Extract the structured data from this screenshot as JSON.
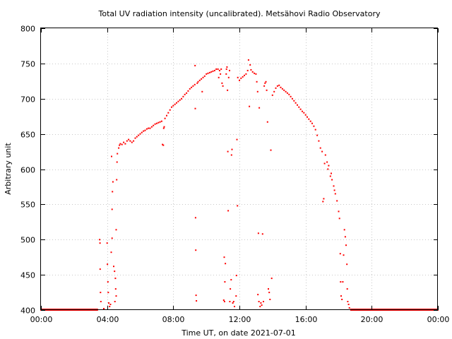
{
  "chart_data": {
    "type": "scatter",
    "title": "Total UV radiation intensity (uncalibrated). Metsähovi Radio Observatory",
    "xlabel": "Time UT, on date 2021-07-01",
    "ylabel": "Arbitrary unit",
    "x_unit": "hours UT",
    "xlim": [
      0,
      24
    ],
    "ylim": [
      400,
      800
    ],
    "x_ticks": [
      {
        "value": 0,
        "label": "00:00"
      },
      {
        "value": 4,
        "label": "04:00"
      },
      {
        "value": 8,
        "label": "08:00"
      },
      {
        "value": 12,
        "label": "12:00"
      },
      {
        "value": 16,
        "label": "16:00"
      },
      {
        "value": 20,
        "label": "20:00"
      },
      {
        "value": 24,
        "label": "00:00"
      }
    ],
    "y_ticks": [
      400,
      450,
      500,
      550,
      600,
      650,
      700,
      750,
      800
    ],
    "grid": true,
    "marker_color": "#ff0000",
    "series": [
      {
        "points": [
          [
            0.0,
            400
          ],
          [
            0.5,
            400
          ],
          [
            1.0,
            400
          ],
          [
            1.5,
            400
          ],
          [
            2.0,
            400
          ],
          [
            2.5,
            400
          ],
          [
            3.0,
            400
          ],
          [
            3.4,
            400
          ],
          [
            3.55,
            500
          ],
          [
            3.57,
            495
          ],
          [
            3.58,
            458
          ],
          [
            3.6,
            425
          ],
          [
            3.62,
            412
          ],
          [
            3.8,
            402
          ],
          [
            4.0,
            495
          ],
          [
            4.02,
            465
          ],
          [
            4.05,
            440
          ],
          [
            4.07,
            425
          ],
          [
            4.1,
            410
          ],
          [
            4.15,
            405
          ],
          [
            4.2,
            408
          ],
          [
            4.25,
            482
          ],
          [
            4.3,
            502
          ],
          [
            4.3,
            543
          ],
          [
            4.32,
            568
          ],
          [
            4.35,
            582
          ],
          [
            4.27,
            618
          ],
          [
            4.4,
            462
          ],
          [
            4.45,
            455
          ],
          [
            4.5,
            445
          ],
          [
            4.52,
            430
          ],
          [
            4.55,
            420
          ],
          [
            4.47,
            412
          ],
          [
            4.55,
            514
          ],
          [
            4.58,
            585
          ],
          [
            4.6,
            610
          ],
          [
            4.62,
            622
          ],
          [
            4.7,
            630
          ],
          [
            4.75,
            634
          ],
          [
            4.8,
            636
          ],
          [
            4.9,
            635
          ],
          [
            5.0,
            638
          ],
          [
            5.1,
            636
          ],
          [
            5.2,
            640
          ],
          [
            5.3,
            642
          ],
          [
            5.4,
            640
          ],
          [
            5.5,
            638
          ],
          [
            5.6,
            640
          ],
          [
            5.7,
            644
          ],
          [
            5.8,
            646
          ],
          [
            5.9,
            648
          ],
          [
            6.0,
            650
          ],
          [
            6.1,
            652
          ],
          [
            6.2,
            654
          ],
          [
            6.3,
            655
          ],
          [
            6.4,
            657
          ],
          [
            6.5,
            658
          ],
          [
            6.6,
            658
          ],
          [
            6.7,
            660
          ],
          [
            6.8,
            662
          ],
          [
            6.9,
            664
          ],
          [
            7.0,
            665
          ],
          [
            7.1,
            666
          ],
          [
            7.2,
            667
          ],
          [
            7.3,
            668
          ],
          [
            7.35,
            635
          ],
          [
            7.4,
            634
          ],
          [
            7.42,
            658
          ],
          [
            7.45,
            660
          ],
          [
            7.5,
            672
          ],
          [
            7.6,
            676
          ],
          [
            7.7,
            680
          ],
          [
            7.8,
            684
          ],
          [
            7.9,
            688
          ],
          [
            8.0,
            690
          ],
          [
            8.1,
            692
          ],
          [
            8.2,
            694
          ],
          [
            8.3,
            696
          ],
          [
            8.4,
            698
          ],
          [
            8.5,
            700
          ],
          [
            8.6,
            703
          ],
          [
            8.7,
            706
          ],
          [
            8.8,
            708
          ],
          [
            8.9,
            711
          ],
          [
            9.0,
            714
          ],
          [
            9.1,
            716
          ],
          [
            9.2,
            718
          ],
          [
            9.3,
            720
          ],
          [
            9.32,
            747
          ],
          [
            9.33,
            686
          ],
          [
            9.35,
            531
          ],
          [
            9.36,
            485
          ],
          [
            9.38,
            421
          ],
          [
            9.4,
            413
          ],
          [
            9.45,
            722
          ],
          [
            9.5,
            724
          ],
          [
            9.6,
            726
          ],
          [
            9.7,
            728
          ],
          [
            9.75,
            710
          ],
          [
            9.8,
            730
          ],
          [
            9.9,
            732
          ],
          [
            10.0,
            735
          ],
          [
            10.1,
            736
          ],
          [
            10.2,
            737
          ],
          [
            10.3,
            738
          ],
          [
            10.4,
            739
          ],
          [
            10.5,
            740
          ],
          [
            10.6,
            742
          ],
          [
            10.7,
            742
          ],
          [
            10.75,
            730
          ],
          [
            10.8,
            740
          ],
          [
            10.85,
            735
          ],
          [
            10.9,
            742
          ],
          [
            10.95,
            722
          ],
          [
            11.0,
            718
          ],
          [
            11.05,
            414
          ],
          [
            11.08,
            475
          ],
          [
            11.1,
            412
          ],
          [
            11.12,
            440
          ],
          [
            11.15,
            466
          ],
          [
            11.2,
            735
          ],
          [
            11.22,
            742
          ],
          [
            11.25,
            745
          ],
          [
            11.28,
            712
          ],
          [
            11.3,
            625
          ],
          [
            11.32,
            541
          ],
          [
            11.35,
            730
          ],
          [
            11.4,
            740
          ],
          [
            11.42,
            412
          ],
          [
            11.45,
            430
          ],
          [
            11.5,
            443
          ],
          [
            11.52,
            620
          ],
          [
            11.55,
            628
          ],
          [
            11.6,
            410
          ],
          [
            11.65,
            412
          ],
          [
            11.7,
            405
          ],
          [
            11.8,
            420
          ],
          [
            11.82,
            449
          ],
          [
            11.85,
            642
          ],
          [
            11.88,
            548
          ],
          [
            11.9,
            730
          ],
          [
            12.0,
            726
          ],
          [
            12.1,
            729
          ],
          [
            12.2,
            731
          ],
          [
            12.3,
            733
          ],
          [
            12.4,
            735
          ],
          [
            12.5,
            740
          ],
          [
            12.55,
            755
          ],
          [
            12.6,
            689
          ],
          [
            12.65,
            748
          ],
          [
            12.7,
            741
          ],
          [
            12.8,
            738
          ],
          [
            12.9,
            736
          ],
          [
            13.0,
            735
          ],
          [
            13.05,
            724
          ],
          [
            13.1,
            710
          ],
          [
            13.12,
            422
          ],
          [
            13.15,
            509
          ],
          [
            13.18,
            412
          ],
          [
            13.2,
            687
          ],
          [
            13.25,
            405
          ],
          [
            13.3,
            410
          ],
          [
            13.35,
            407
          ],
          [
            13.4,
            508
          ],
          [
            13.45,
            412
          ],
          [
            13.5,
            718
          ],
          [
            13.55,
            722
          ],
          [
            13.6,
            724
          ],
          [
            13.65,
            712
          ],
          [
            13.7,
            667
          ],
          [
            13.75,
            430
          ],
          [
            13.8,
            425
          ],
          [
            13.85,
            415
          ],
          [
            13.9,
            627
          ],
          [
            13.95,
            445
          ],
          [
            14.0,
            705
          ],
          [
            14.1,
            710
          ],
          [
            14.2,
            715
          ],
          [
            14.3,
            718
          ],
          [
            14.4,
            719
          ],
          [
            14.5,
            716
          ],
          [
            14.6,
            714
          ],
          [
            14.7,
            712
          ],
          [
            14.8,
            710
          ],
          [
            14.9,
            708
          ],
          [
            15.0,
            706
          ],
          [
            15.1,
            703
          ],
          [
            15.2,
            700
          ],
          [
            15.3,
            697
          ],
          [
            15.4,
            694
          ],
          [
            15.5,
            691
          ],
          [
            15.6,
            688
          ],
          [
            15.7,
            685
          ],
          [
            15.8,
            682
          ],
          [
            15.9,
            680
          ],
          [
            16.0,
            677
          ],
          [
            16.1,
            674
          ],
          [
            16.2,
            671
          ],
          [
            16.3,
            668
          ],
          [
            16.4,
            665
          ],
          [
            16.5,
            661
          ],
          [
            16.6,
            656
          ],
          [
            16.7,
            648
          ],
          [
            16.8,
            640
          ],
          [
            16.9,
            630
          ],
          [
            17.0,
            625
          ],
          [
            17.05,
            554
          ],
          [
            17.1,
            558
          ],
          [
            17.15,
            608
          ],
          [
            17.2,
            620
          ],
          [
            17.3,
            610
          ],
          [
            17.35,
            600
          ],
          [
            17.4,
            605
          ],
          [
            17.5,
            590
          ],
          [
            17.55,
            594
          ],
          [
            17.6,
            585
          ],
          [
            17.7,
            576
          ],
          [
            17.75,
            570
          ],
          [
            17.8,
            565
          ],
          [
            17.9,
            555
          ],
          [
            18.0,
            540
          ],
          [
            18.05,
            530
          ],
          [
            18.1,
            480
          ],
          [
            18.12,
            440
          ],
          [
            18.15,
            420
          ],
          [
            18.2,
            415
          ],
          [
            18.25,
            440
          ],
          [
            18.3,
            478
          ],
          [
            18.35,
            514
          ],
          [
            18.4,
            504
          ],
          [
            18.45,
            492
          ],
          [
            18.5,
            465
          ],
          [
            18.52,
            430
          ],
          [
            18.55,
            412
          ],
          [
            18.6,
            408
          ],
          [
            18.65,
            403
          ],
          [
            18.8,
            400
          ],
          [
            19.0,
            400
          ],
          [
            19.5,
            400
          ],
          [
            20.0,
            400
          ],
          [
            20.5,
            400
          ],
          [
            21.0,
            400
          ],
          [
            21.5,
            400
          ],
          [
            22.0,
            400
          ],
          [
            22.5,
            400
          ],
          [
            23.0,
            400
          ],
          [
            23.5,
            400
          ],
          [
            24.0,
            400
          ]
        ]
      }
    ]
  }
}
